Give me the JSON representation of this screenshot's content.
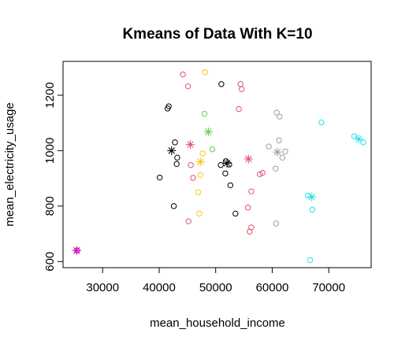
{
  "chart_data": {
    "type": "scatter",
    "title": "Kmeans of Data With K=10",
    "xlabel": "mean_household_income",
    "ylabel": "mean_electricity_usage",
    "xlim": [
      23000,
      77500
    ],
    "ylim": [
      578,
      1322
    ],
    "xticks": [
      30000,
      40000,
      50000,
      60000,
      70000
    ],
    "xtick_labels": [
      "30000",
      "40000",
      "50000",
      "60000",
      "70000"
    ],
    "yticks": [
      600,
      800,
      1000,
      1200
    ],
    "ytick_labels": [
      "600",
      "800",
      "1000",
      "1200"
    ],
    "grid": false,
    "legend": "none",
    "series": [
      {
        "color": "#000000",
        "points": [
          [
            51000,
            1240
          ],
          [
            41700,
            1160
          ],
          [
            41500,
            1152
          ],
          [
            42800,
            1030
          ],
          [
            43200,
            975
          ],
          [
            43100,
            952
          ],
          [
            40100,
            903
          ],
          [
            42600,
            800
          ],
          [
            50900,
            948
          ],
          [
            51800,
            962
          ],
          [
            52400,
            950
          ],
          [
            51700,
            918
          ],
          [
            52600,
            875
          ],
          [
            53500,
            773
          ]
        ],
        "center": [
          [
            42200,
            1000
          ],
          [
            52000,
            955
          ]
        ]
      },
      {
        "color": "#DF536B",
        "points": [
          [
            44200,
            1275
          ],
          [
            45100,
            1232
          ],
          [
            54400,
            1240
          ],
          [
            54600,
            1222
          ],
          [
            54100,
            1150
          ],
          [
            45600,
            948
          ],
          [
            46000,
            902
          ],
          [
            45200,
            745
          ],
          [
            57800,
            915
          ],
          [
            58300,
            920
          ],
          [
            56300,
            853
          ],
          [
            55700,
            795
          ],
          [
            56300,
            723
          ],
          [
            56000,
            708
          ]
        ],
        "center": [
          [
            45500,
            1022
          ],
          [
            55800,
            970
          ]
        ]
      },
      {
        "color": "#61D04F",
        "points": [
          [
            48000,
            1133
          ],
          [
            49400,
            1005
          ]
        ],
        "center": [
          [
            48700,
            1068
          ]
        ]
      },
      {
        "color": "#F5C710",
        "points": [
          [
            48100,
            1283
          ],
          [
            47700,
            990
          ],
          [
            47300,
            912
          ],
          [
            46900,
            850
          ],
          [
            47100,
            773
          ]
        ],
        "center": [
          [
            47300,
            960
          ]
        ]
      },
      {
        "color": "#9E9E9E",
        "points": [
          [
            60800,
            1137
          ],
          [
            61300,
            1123
          ],
          [
            59400,
            1015
          ],
          [
            62300,
            997
          ],
          [
            61800,
            975
          ],
          [
            60600,
            935
          ],
          [
            61200,
            1037
          ],
          [
            60700,
            737
          ]
        ],
        "center": [
          [
            60900,
            995
          ]
        ]
      },
      {
        "color": "#28E2E5",
        "points": [
          [
            68700,
            1102
          ],
          [
            74500,
            1052
          ],
          [
            76100,
            1030
          ],
          [
            66300,
            838
          ],
          [
            67100,
            787
          ],
          [
            66700,
            605
          ]
        ],
        "center": [
          [
            75300,
            1042
          ],
          [
            67000,
            833
          ]
        ]
      },
      {
        "color": "#CD0BBC",
        "points": [
          [
            25500,
            640
          ]
        ],
        "center": [
          [
            25400,
            640
          ]
        ]
      }
    ]
  }
}
